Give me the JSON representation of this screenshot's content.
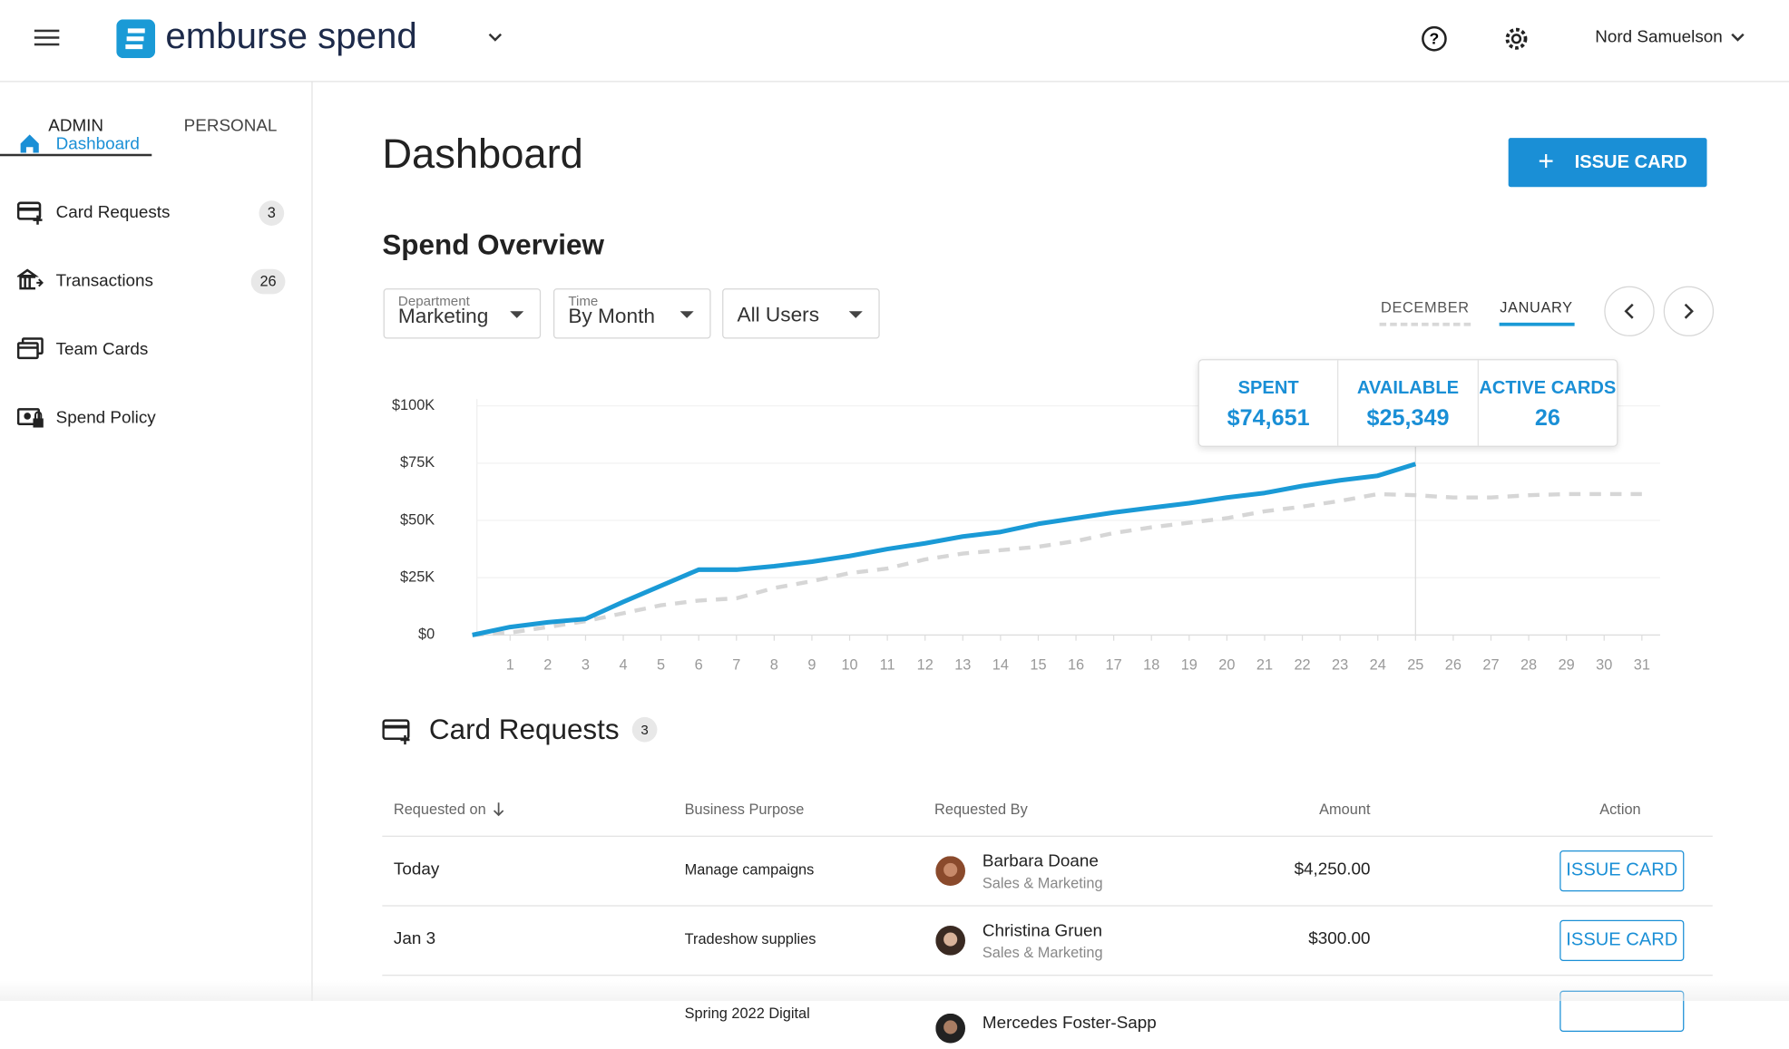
{
  "header": {
    "brand": "emburse spend",
    "user": "Nord Samuelson"
  },
  "sidebar": {
    "tabs": [
      "ADMIN",
      "PERSONAL"
    ],
    "nav": [
      {
        "label": "Dashboard"
      },
      {
        "label": "Card Requests",
        "badge": 3
      },
      {
        "label": "Transactions",
        "badge": 26
      },
      {
        "label": "Team Cards"
      },
      {
        "label": "Spend Policy"
      }
    ]
  },
  "page": {
    "title": "Dashboard",
    "button": "ISSUE CARD",
    "section": "Spend Overview",
    "filters": [
      {
        "label": "Department",
        "value": "Marketing"
      },
      {
        "label": "Time",
        "value": "By Month"
      },
      {
        "value": "All Users"
      }
    ]
  },
  "summary": [
    {
      "label": "SPENT",
      "value": "$74,651"
    },
    {
      "label": "AVAILABLE",
      "value": "$25,349"
    },
    {
      "label": "ACTIVE CARDS",
      "value": 26
    }
  ],
  "chart_data": {
    "type": "line",
    "x": [
      0,
      1,
      2,
      3,
      4,
      5,
      6,
      7,
      8,
      9,
      10,
      11,
      12,
      13,
      14,
      15,
      16,
      17,
      18,
      19,
      20,
      21,
      22,
      23,
      24,
      25,
      26,
      27,
      28,
      29,
      30,
      31
    ],
    "xlim": [
      0,
      31
    ],
    "xticks": [
      1,
      2,
      3,
      4,
      5,
      6,
      7,
      8,
      9,
      10,
      11,
      12,
      13,
      14,
      15,
      16,
      17,
      18,
      19,
      20,
      21,
      22,
      23,
      24,
      25,
      26,
      27,
      28,
      29,
      30,
      31
    ],
    "ylim": [
      0,
      100000
    ],
    "yticks": [
      {
        "value": 0,
        "label": "$0"
      },
      {
        "value": 25000,
        "label": "$25K"
      },
      {
        "value": 50000,
        "label": "$50K"
      },
      {
        "value": 75000,
        "label": "$75K"
      },
      {
        "value": 100000,
        "label": "$100K"
      }
    ],
    "grid": true,
    "series": [
      {
        "name": "JANUARY",
        "color": "#1a9ad6",
        "values": [
          0,
          3500,
          5500,
          7000,
          14500,
          21500,
          28500,
          28500,
          30000,
          32000,
          34500,
          37500,
          40000,
          43000,
          45000,
          48500,
          51000,
          53500,
          55500,
          57500,
          60000,
          62000,
          65000,
          67500,
          69500,
          74651,
          null,
          null,
          null,
          null,
          null,
          null
        ]
      },
      {
        "name": "DECEMBER",
        "color": "#d6d6d6",
        "values": [
          0,
          1000,
          3500,
          6000,
          9500,
          13000,
          15000,
          16000,
          20500,
          23500,
          27000,
          29000,
          33000,
          35500,
          37000,
          38500,
          41000,
          44500,
          47000,
          49000,
          51000,
          54000,
          56000,
          58500,
          61500,
          61000,
          60000,
          60000,
          61000,
          61500,
          61500,
          61500
        ]
      }
    ]
  },
  "requests": {
    "title": "Card Requests",
    "count": 3,
    "columns": [
      "Requested on",
      "Business Purpose",
      "Requested By",
      "Amount",
      "Action"
    ],
    "rows": [
      {
        "date": "Today",
        "purpose": "Manage campaigns",
        "name": "Barbara Doane",
        "dept": "Sales & Marketing",
        "amount": "$4,250.00",
        "action": "ISSUE CARD"
      },
      {
        "date": "Jan 3",
        "purpose": "Tradeshow supplies",
        "name": "Christina Gruen",
        "dept": "Sales & Marketing",
        "amount": "$300.00",
        "action": "ISSUE CARD"
      },
      {
        "purpose": "Spring 2022 Digital",
        "name": "Mercedes Foster-Sapp"
      }
    ]
  }
}
